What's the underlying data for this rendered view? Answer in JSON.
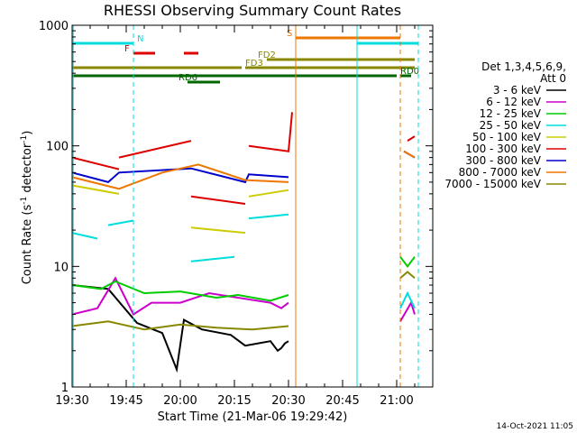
{
  "chart_data": {
    "type": "line",
    "title": "RHESSI Observing Summary Count Rates",
    "xlabel": "Start Time (21-Mar-06 19:29:42)",
    "ylabel": "Count Rate (s⁻¹ detector⁻¹)",
    "ylabel_main": "Count Rate (s",
    "ylabel_sup1": "-1",
    "ylabel_mid": " detector",
    "ylabel_sup2": "-1",
    "ylabel_end": ")",
    "y_scale": "log",
    "ylim": [
      1,
      1000
    ],
    "xlim": [
      "19:30",
      "21:10"
    ],
    "xlim_minutes": [
      0,
      100
    ],
    "x_ticks": [
      "19:30",
      "19:45",
      "20:00",
      "20:15",
      "20:30",
      "20:45",
      "21:00"
    ],
    "x_tick_minutes": [
      0,
      15,
      30,
      45,
      60,
      75,
      90
    ],
    "y_ticks": [
      1,
      10,
      100,
      1000
    ],
    "y_tick_labels": [
      "1",
      "10",
      "100",
      "1000"
    ],
    "legend_title1": "Det 1,3,4,5,6,9,",
    "legend_title2": "Att 0",
    "legend_position": "right",
    "series": [
      {
        "name": "3 - 6 keV",
        "color": "#000000",
        "segments": [
          {
            "x": [
              0,
              10,
              18,
              25,
              29,
              31,
              36,
              44,
              48,
              55,
              57,
              58,
              59,
              60
            ],
            "y": [
              7,
              6.5,
              3.4,
              2.8,
              1.4,
              3.6,
              3.0,
              2.7,
              2.2,
              2.4,
              2.0,
              2.1,
              2.3,
              2.4
            ]
          }
        ]
      },
      {
        "name": "6 - 12 keV",
        "color": "#cc00cc",
        "segments": [
          {
            "x": [
              0,
              7,
              12,
              17,
              22,
              30,
              38,
              46,
              55,
              58,
              60
            ],
            "y": [
              4,
              4.5,
              8,
              4,
              5,
              5,
              6,
              5.5,
              5,
              4.5,
              5
            ]
          },
          {
            "x": [
              91,
              94,
              95
            ],
            "y": [
              3.5,
              5.0,
              4.0
            ]
          }
        ]
      },
      {
        "name": "12 - 25 keV",
        "color": "#00cc00",
        "segments": [
          {
            "x": [
              0,
              8,
              12,
              20,
              30,
              40,
              46,
              55,
              60
            ],
            "y": [
              7,
              6.5,
              7.5,
              6,
              6.2,
              5.5,
              5.8,
              5.2,
              5.8
            ]
          },
          {
            "x": [
              91,
              93,
              95
            ],
            "y": [
              12,
              10,
              12
            ]
          }
        ]
      },
      {
        "name": "25 - 50 keV",
        "color": "#00dddd",
        "segments": [
          {
            "x": [
              0,
              7
            ],
            "y": [
              19,
              17
            ]
          },
          {
            "x": [
              10,
              17
            ],
            "y": [
              22,
              24
            ]
          },
          {
            "x": [
              33,
              45
            ],
            "y": [
              11,
              12
            ]
          },
          {
            "x": [
              49,
              60
            ],
            "y": [
              25,
              27
            ]
          },
          {
            "x": [
              91,
              93,
              95
            ],
            "y": [
              4.5,
              6.0,
              4.5
            ]
          }
        ]
      },
      {
        "name": "50 - 100 keV",
        "color": "#cccc00",
        "segments": [
          {
            "x": [
              0,
              13
            ],
            "y": [
              47,
              40
            ]
          },
          {
            "x": [
              33,
              48
            ],
            "y": [
              21,
              19
            ]
          },
          {
            "x": [
              49,
              60
            ],
            "y": [
              38,
              43
            ]
          }
        ]
      },
      {
        "name": "100 - 300 keV",
        "color": "#dd0000",
        "segments": [
          {
            "x": [
              0,
              13
            ],
            "y": [
              80,
              64
            ]
          },
          {
            "x": [
              13,
              33
            ],
            "y": [
              80,
              110
            ]
          },
          {
            "x": [
              33,
              48
            ],
            "y": [
              38,
              33
            ]
          },
          {
            "x": [
              49,
              60,
              61
            ],
            "y": [
              100,
              90,
              190
            ]
          },
          {
            "x": [
              93,
              95
            ],
            "y": [
              110,
              120
            ]
          }
        ]
      },
      {
        "name": "300 - 800 keV",
        "color": "#0000cc",
        "segments": [
          {
            "x": [
              0,
              10,
              13,
              33,
              48,
              49,
              60
            ],
            "y": [
              60,
              50,
              60,
              65,
              50,
              58,
              55
            ]
          },
          {
            "x": [
              92,
              95
            ],
            "y": [
              90,
              80
            ]
          }
        ]
      },
      {
        "name": "800 - 7000 keV",
        "color": "#ee7700",
        "segments": [
          {
            "x": [
              0,
              13,
              25,
              35,
              48,
              60
            ],
            "y": [
              55,
              44,
              60,
              70,
              52,
              50
            ]
          },
          {
            "x": [
              92,
              95
            ],
            "y": [
              90,
              80
            ]
          }
        ]
      },
      {
        "name": "7000 - 15000 keV",
        "color": "#888800",
        "segments": [
          {
            "x": [
              0,
              10,
              20,
              30,
              40,
              50,
              60
            ],
            "y": [
              3.2,
              3.5,
              3.0,
              3.3,
              3.1,
              3.0,
              3.2
            ]
          },
          {
            "x": [
              91,
              93,
              95
            ],
            "y": [
              8,
              9,
              8
            ]
          }
        ]
      }
    ],
    "flags": [
      {
        "label": "N",
        "color": "#00dddd",
        "segments": [
          [
            0,
            17
          ],
          [
            79,
            96
          ]
        ]
      },
      {
        "label": "F",
        "color": "#dd0000",
        "segments": [
          [
            17,
            23
          ],
          [
            31,
            35
          ]
        ]
      },
      {
        "label": "S",
        "color": "#ee7700",
        "segments": [
          [
            62,
            91
          ]
        ]
      },
      {
        "label": "FD2",
        "color": "#888800",
        "segments": [
          [
            54,
            95
          ]
        ]
      },
      {
        "label": "FD3",
        "color": "#888800",
        "segments": [
          [
            0,
            47
          ],
          [
            48,
            95
          ]
        ]
      },
      {
        "label": "RD0",
        "color": "#006600",
        "segments": [
          [
            0,
            90
          ],
          [
            91,
            94
          ]
        ]
      },
      {
        "label": "RD6",
        "color": "#006600",
        "segments": [
          [
            32,
            41
          ]
        ]
      }
    ],
    "vlines": [
      {
        "x": 17,
        "color": "#00dddd",
        "style": "dashed"
      },
      {
        "x": 62,
        "color": "#ee7700",
        "style": "solid"
      },
      {
        "x": 79,
        "color": "#00dddd",
        "style": "solid"
      },
      {
        "x": 91,
        "color": "#ee7700",
        "style": "dashed"
      },
      {
        "x": 96,
        "color": "#00dddd",
        "style": "dashed"
      },
      {
        "x": 0.3,
        "color": "#00dddd",
        "style": "solid"
      }
    ],
    "footer": "14-Oct-2021 11:05"
  }
}
